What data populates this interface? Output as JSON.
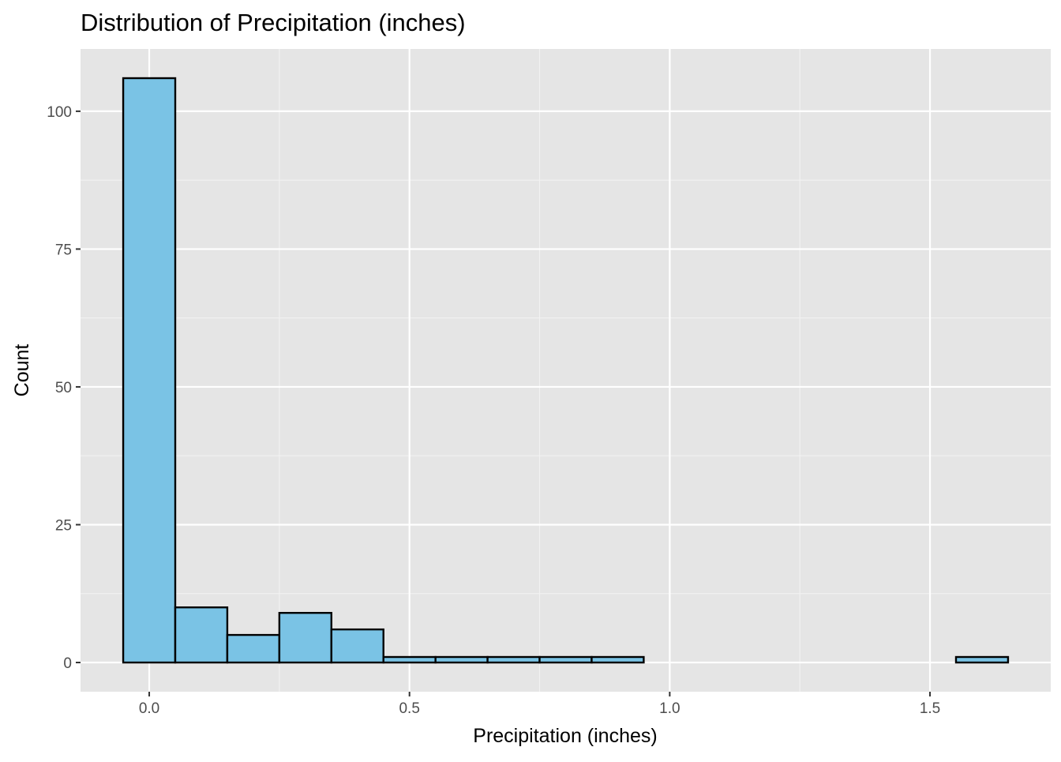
{
  "chart_data": {
    "type": "bar",
    "subtype": "histogram",
    "title": "Distribution of Precipitation (inches)",
    "xlabel": "Precipitation (inches)",
    "ylabel": "Count",
    "bin_width": 0.1,
    "bins": [
      {
        "start": -0.05,
        "end": 0.05,
        "count": 106
      },
      {
        "start": 0.05,
        "end": 0.15,
        "count": 10
      },
      {
        "start": 0.15,
        "end": 0.25,
        "count": 5
      },
      {
        "start": 0.25,
        "end": 0.35,
        "count": 9
      },
      {
        "start": 0.35,
        "end": 0.45,
        "count": 6
      },
      {
        "start": 0.45,
        "end": 0.55,
        "count": 1
      },
      {
        "start": 0.55,
        "end": 0.65,
        "count": 1
      },
      {
        "start": 0.65,
        "end": 0.75,
        "count": 1
      },
      {
        "start": 0.75,
        "end": 0.85,
        "count": 1
      },
      {
        "start": 0.85,
        "end": 0.95,
        "count": 1
      },
      {
        "start": 0.95,
        "end": 1.05,
        "count": 0
      },
      {
        "start": 1.05,
        "end": 1.15,
        "count": 0
      },
      {
        "start": 1.15,
        "end": 1.25,
        "count": 0
      },
      {
        "start": 1.25,
        "end": 1.35,
        "count": 0
      },
      {
        "start": 1.35,
        "end": 1.45,
        "count": 0
      },
      {
        "start": 1.45,
        "end": 1.55,
        "count": 0
      },
      {
        "start": 1.55,
        "end": 1.65,
        "count": 1
      }
    ],
    "xlim": [
      -0.132,
      1.732
    ],
    "ylim": [
      -5.3,
      111.3
    ],
    "x_ticks": [
      0.0,
      0.5,
      1.0,
      1.5
    ],
    "x_tick_labels": [
      "0.0",
      "0.5",
      "1.0",
      "1.5"
    ],
    "y_ticks": [
      0,
      25,
      50,
      75,
      100
    ],
    "y_tick_labels": [
      "0",
      "25",
      "50",
      "75",
      "100"
    ],
    "x_minor_ticks": [
      0.25,
      0.75,
      1.25
    ],
    "y_minor_ticks": [
      12.5,
      37.5,
      62.5,
      87.5
    ],
    "grid": true,
    "legend": "none",
    "colors": {
      "bar_fill": "#7AC3E5",
      "bar_outline": "#000000",
      "panel_background": "#E5E5E5",
      "grid_major": "#FFFFFF",
      "grid_minor": "#F2F2F2",
      "tick_label": "#4D4D4D"
    }
  }
}
